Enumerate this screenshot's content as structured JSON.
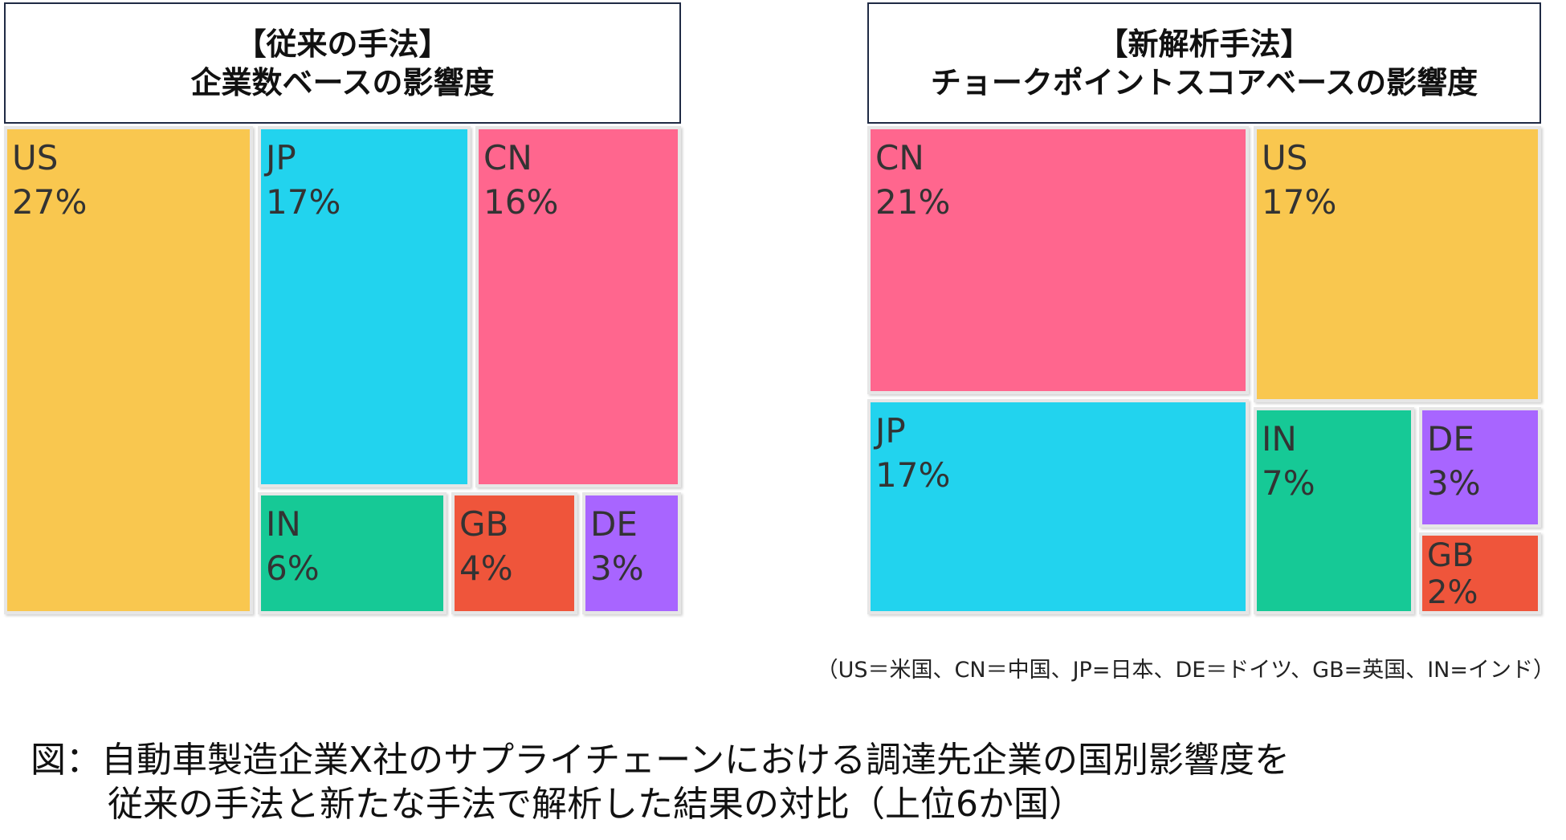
{
  "chart_data": [
    {
      "type": "treemap",
      "title_line1": "【従来の手法】",
      "title_line2": "企業数ベースの影響度",
      "items": [
        {
          "key": "us",
          "label": "US",
          "value_text": "27%",
          "value": 27,
          "color": "#F9C74F"
        },
        {
          "key": "jp",
          "label": "JP",
          "value_text": "17%",
          "value": 17,
          "color": "#22D3EE"
        },
        {
          "key": "cn",
          "label": "CN",
          "value_text": "16%",
          "value": 16,
          "color": "#FF668E"
        },
        {
          "key": "in",
          "label": "IN",
          "value_text": "6%",
          "value": 6,
          "color": "#16C996"
        },
        {
          "key": "gb",
          "label": "GB",
          "value_text": "4%",
          "value": 4,
          "color": "#EF553B"
        },
        {
          "key": "de",
          "label": "DE",
          "value_text": "3%",
          "value": 3,
          "color": "#A865FF"
        }
      ]
    },
    {
      "type": "treemap",
      "title_line1": "【新解析手法】",
      "title_line2": "チョークポイントスコアベースの影響度",
      "items": [
        {
          "key": "cn",
          "label": "CN",
          "value_text": "21%",
          "value": 21,
          "color": "#FF668E"
        },
        {
          "key": "us",
          "label": "US",
          "value_text": "17%",
          "value": 17,
          "color": "#F9C74F"
        },
        {
          "key": "jp",
          "label": "JP",
          "value_text": "17%",
          "value": 17,
          "color": "#22D3EE"
        },
        {
          "key": "in",
          "label": "IN",
          "value_text": "7%",
          "value": 7,
          "color": "#16C996"
        },
        {
          "key": "de",
          "label": "DE",
          "value_text": "3%",
          "value": 3,
          "color": "#A865FF"
        },
        {
          "key": "gb",
          "label": "GB",
          "value_text": "2%",
          "value": 2,
          "color": "#EF553B"
        }
      ]
    }
  ],
  "legend_note": "（US＝米国、CN＝中国、JP=日本、DE＝ドイツ、GB=英国、IN=インド）",
  "caption": {
    "line1": "図：自動車製造企業X社のサプライチェーンにおける調達先企業の国別影響度を",
    "line2": "従来の手法と新たな手法で解析した結果の対比（上位6か国）"
  }
}
